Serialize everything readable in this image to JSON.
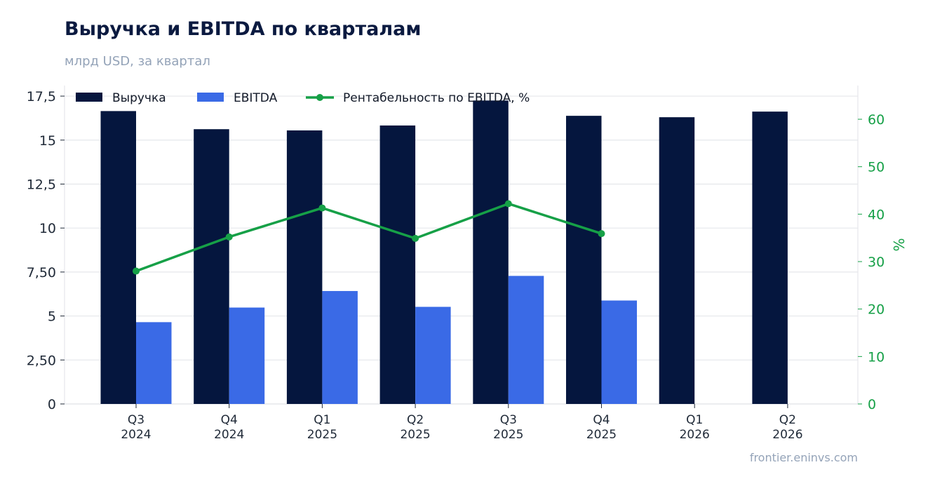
{
  "header": {
    "title": "Выручка и EBITDA по кварталам",
    "subtitle": "млрд USD, за квартал"
  },
  "footer": {
    "source": "frontier.eninvs.com"
  },
  "colors": {
    "revenue": "#05163e",
    "ebitda": "#3a6ae6",
    "margin": "#16a047",
    "grid": "#e5e7eb",
    "axis_text": "#1f2937",
    "right_axis_text": "#16a047"
  },
  "chart_data": {
    "type": "bar",
    "categories": [
      [
        "Q3",
        "2024"
      ],
      [
        "Q4",
        "2024"
      ],
      [
        "Q1",
        "2025"
      ],
      [
        "Q2",
        "2025"
      ],
      [
        "Q3",
        "2025"
      ],
      [
        "Q4",
        "2025"
      ],
      [
        "Q1",
        "2026"
      ],
      [
        "Q2",
        "2026"
      ]
    ],
    "series": [
      {
        "name": "Выручка",
        "type": "bar",
        "axis": "left",
        "values": [
          16.65,
          15.62,
          15.55,
          15.83,
          17.25,
          16.38,
          16.3,
          16.62
        ]
      },
      {
        "name": "EBITDA",
        "type": "bar",
        "axis": "left",
        "values": [
          4.65,
          5.48,
          6.42,
          5.52,
          7.28,
          5.88,
          null,
          null
        ]
      },
      {
        "name": "Рентабельность по EBITDA, %",
        "type": "line",
        "axis": "right",
        "values": [
          28.0,
          35.2,
          41.3,
          34.9,
          42.2,
          35.9,
          null,
          null
        ]
      }
    ],
    "y_left": {
      "ylim": [
        0,
        18.1
      ],
      "ticks": [
        0,
        2.5,
        5,
        7.5,
        10,
        12.5,
        15,
        17.5
      ],
      "tick_labels": [
        "0",
        "2,50",
        "5",
        "7,50",
        "10",
        "12,5",
        "15",
        "17,5"
      ]
    },
    "y_right": {
      "label": "%",
      "ylim": [
        0,
        67.1
      ],
      "ticks": [
        0,
        10,
        20,
        30,
        40,
        50,
        60
      ],
      "tick_labels": [
        "0",
        "10",
        "20",
        "30",
        "40",
        "50",
        "60"
      ]
    },
    "grid": true,
    "legend_position": "top-left"
  }
}
